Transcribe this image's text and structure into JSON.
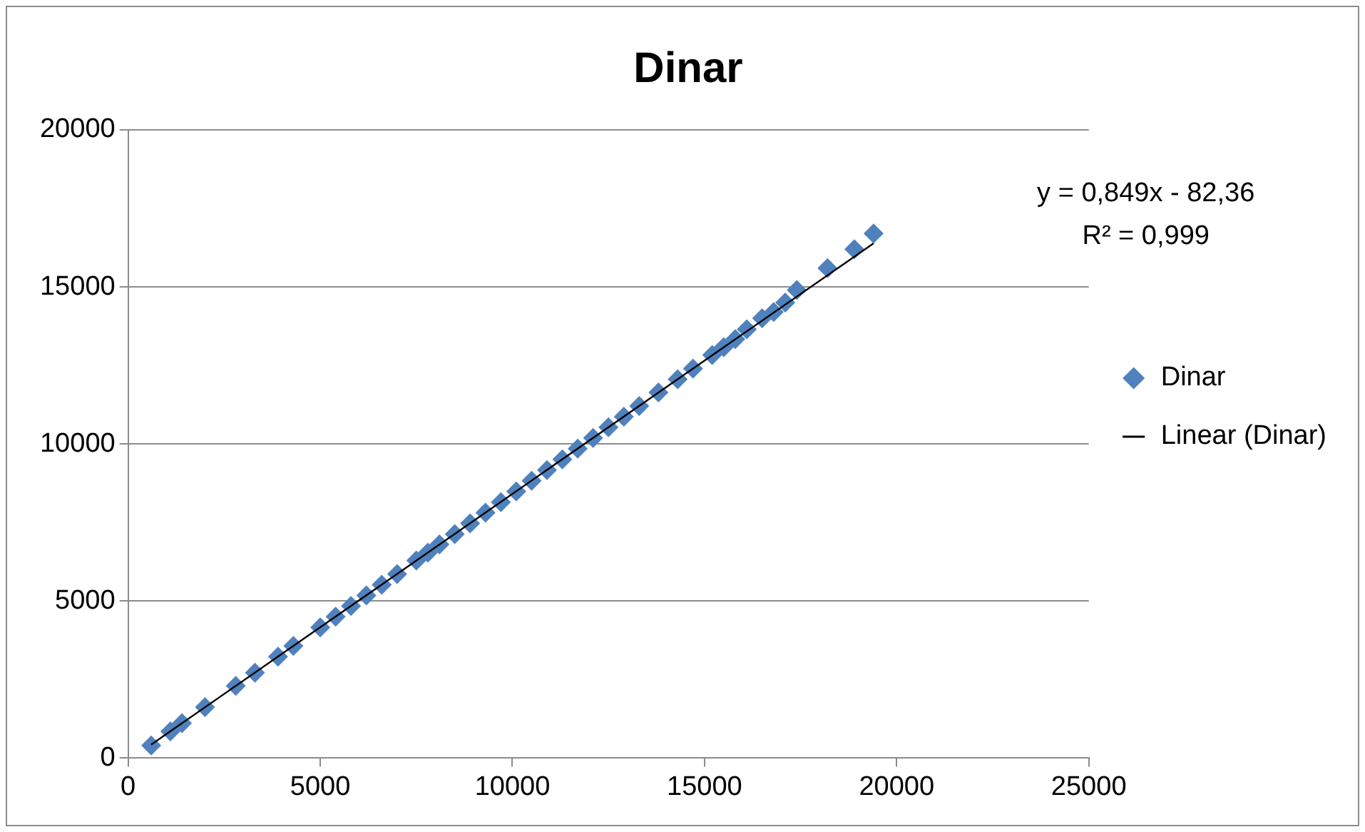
{
  "chart_data": {
    "type": "scatter",
    "title": "Dinar",
    "grid": "y",
    "legend": "right",
    "xlim": [
      0,
      25000
    ],
    "xticks": [
      0,
      5000,
      10000,
      15000,
      20000,
      25000
    ],
    "ylim": [
      0,
      20000
    ],
    "yticks": [
      0,
      5000,
      10000,
      15000,
      20000
    ],
    "annotations": [
      "y = 0,849x - 82,36",
      "R² = 0,999"
    ],
    "series": [
      {
        "name": "Dinar",
        "marker": "diamond",
        "color": "#4f81bd",
        "x": [
          600,
          1100,
          1400,
          2000,
          2800,
          3300,
          3900,
          4300,
          5000,
          5400,
          5800,
          6200,
          6600,
          7000,
          7500,
          7800,
          8100,
          8500,
          8900,
          9300,
          9700,
          10100,
          10500,
          10900,
          11300,
          11700,
          12100,
          12500,
          12900,
          13300,
          13800,
          14300,
          14700,
          15200,
          15500,
          15800,
          16100,
          16500,
          16800,
          17100,
          17400,
          18200,
          18900,
          19400
        ],
        "values": [
          400,
          850,
          1110,
          1620,
          2300,
          2720,
          3230,
          3570,
          4160,
          4500,
          4840,
          5180,
          5520,
          5860,
          6290,
          6540,
          6800,
          7130,
          7470,
          7810,
          8150,
          8490,
          8830,
          9170,
          9510,
          9850,
          10190,
          10530,
          10870,
          11210,
          11640,
          12060,
          12400,
          12830,
          13080,
          13340,
          13650,
          14000,
          14200,
          14500,
          14900,
          15600,
          16200,
          16700
        ]
      },
      {
        "name": "Linear (Dinar)",
        "type": "line",
        "marker": "none",
        "color": "#000000",
        "line_style": "solid",
        "x": [
          600,
          19400
        ],
        "values": [
          430,
          16390
        ]
      }
    ]
  }
}
